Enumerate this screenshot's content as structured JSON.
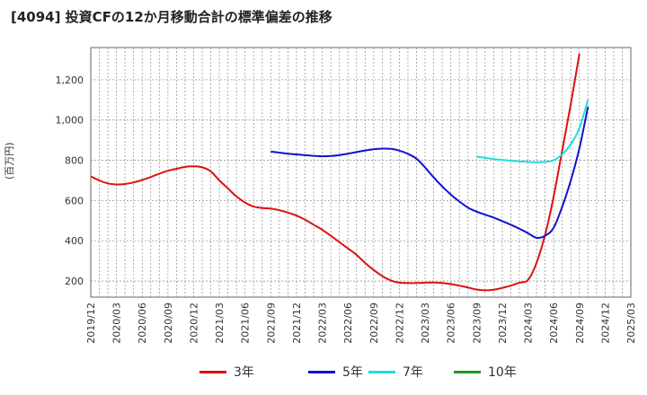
{
  "chart_data": {
    "type": "line",
    "title": "[4094]  投資CFの12か月移動合計の標準偏差の推移",
    "ylabel": "(百万円)",
    "xlabel": "",
    "x_ticks": [
      "2019/12",
      "2020/03",
      "2020/06",
      "2020/09",
      "2020/12",
      "2021/03",
      "2021/06",
      "2021/09",
      "2021/12",
      "2022/03",
      "2022/06",
      "2022/09",
      "2022/12",
      "2023/03",
      "2023/06",
      "2023/09",
      "2023/12",
      "2024/03",
      "2024/06",
      "2024/09",
      "2024/12",
      "2025/03"
    ],
    "y_ticks": [
      200,
      400,
      600,
      800,
      1000,
      1200
    ],
    "y_tick_labels": [
      "200",
      "400",
      "600",
      "800",
      "1,000",
      "1,200"
    ],
    "ylim": [
      120,
      1360
    ],
    "grid": true,
    "legend_position": "bottom",
    "series": [
      {
        "name": "3年",
        "color": "#dd1111",
        "points": [
          [
            "2019/12",
            720
          ],
          [
            "2020/01",
            700
          ],
          [
            "2020/02",
            685
          ],
          [
            "2020/03",
            680
          ],
          [
            "2020/04",
            682
          ],
          [
            "2020/05",
            690
          ],
          [
            "2020/06",
            702
          ],
          [
            "2020/07",
            717
          ],
          [
            "2020/08",
            733
          ],
          [
            "2020/09",
            748
          ],
          [
            "2020/10",
            758
          ],
          [
            "2020/11",
            767
          ],
          [
            "2020/12",
            770
          ],
          [
            "2021/01",
            765
          ],
          [
            "2021/02",
            745
          ],
          [
            "2021/03",
            700
          ],
          [
            "2021/04",
            660
          ],
          [
            "2021/05",
            620
          ],
          [
            "2021/06",
            590
          ],
          [
            "2021/07",
            570
          ],
          [
            "2021/08",
            563
          ],
          [
            "2021/09",
            560
          ],
          [
            "2021/10",
            552
          ],
          [
            "2021/11",
            540
          ],
          [
            "2021/12",
            525
          ],
          [
            "2022/01",
            505
          ],
          [
            "2022/02",
            480
          ],
          [
            "2022/03",
            455
          ],
          [
            "2022/04",
            425
          ],
          [
            "2022/05",
            393
          ],
          [
            "2022/06",
            362
          ],
          [
            "2022/07",
            330
          ],
          [
            "2022/08",
            290
          ],
          [
            "2022/09",
            255
          ],
          [
            "2022/10",
            225
          ],
          [
            "2022/11",
            203
          ],
          [
            "2022/12",
            192
          ],
          [
            "2023/01",
            190
          ],
          [
            "2023/02",
            190
          ],
          [
            "2023/03",
            192
          ],
          [
            "2023/04",
            193
          ],
          [
            "2023/05",
            190
          ],
          [
            "2023/06",
            185
          ],
          [
            "2023/07",
            177
          ],
          [
            "2023/08",
            168
          ],
          [
            "2023/09",
            158
          ],
          [
            "2023/10",
            154
          ],
          [
            "2023/11",
            157
          ],
          [
            "2023/12",
            166
          ],
          [
            "2024/01",
            177
          ],
          [
            "2024/02",
            192
          ],
          [
            "2024/03",
            205
          ],
          [
            "2024/04",
            290
          ],
          [
            "2024/05",
            430
          ],
          [
            "2024/06",
            620
          ],
          [
            "2024/07",
            850
          ],
          [
            "2024/08",
            1080
          ],
          [
            "2024/09",
            1330
          ]
        ]
      },
      {
        "name": "5年",
        "color": "#1111cc",
        "points": [
          [
            "2021/09",
            843
          ],
          [
            "2021/10",
            838
          ],
          [
            "2021/11",
            833
          ],
          [
            "2021/12",
            829
          ],
          [
            "2022/01",
            825
          ],
          [
            "2022/02",
            822
          ],
          [
            "2022/03",
            820
          ],
          [
            "2022/04",
            821
          ],
          [
            "2022/05",
            826
          ],
          [
            "2022/06",
            833
          ],
          [
            "2022/07",
            841
          ],
          [
            "2022/08",
            849
          ],
          [
            "2022/09",
            855
          ],
          [
            "2022/10",
            858
          ],
          [
            "2022/11",
            857
          ],
          [
            "2022/12",
            848
          ],
          [
            "2023/01",
            832
          ],
          [
            "2023/02",
            808
          ],
          [
            "2023/03",
            765
          ],
          [
            "2023/04",
            715
          ],
          [
            "2023/05",
            670
          ],
          [
            "2023/06",
            630
          ],
          [
            "2023/07",
            595
          ],
          [
            "2023/08",
            565
          ],
          [
            "2023/09",
            545
          ],
          [
            "2023/10",
            530
          ],
          [
            "2023/11",
            515
          ],
          [
            "2023/12",
            498
          ],
          [
            "2024/01",
            480
          ],
          [
            "2024/02",
            460
          ],
          [
            "2024/03",
            438
          ],
          [
            "2024/04",
            415
          ],
          [
            "2024/05",
            425
          ],
          [
            "2024/06",
            465
          ],
          [
            "2024/07",
            570
          ],
          [
            "2024/08",
            700
          ],
          [
            "2024/09",
            860
          ],
          [
            "2024/10",
            1065
          ]
        ]
      },
      {
        "name": "7年",
        "color": "#22dddd",
        "points": [
          [
            "2023/09",
            818
          ],
          [
            "2023/10",
            812
          ],
          [
            "2023/11",
            806
          ],
          [
            "2023/12",
            802
          ],
          [
            "2024/01",
            798
          ],
          [
            "2024/02",
            795
          ],
          [
            "2024/03",
            792
          ],
          [
            "2024/04",
            790
          ],
          [
            "2024/05",
            792
          ],
          [
            "2024/06",
            800
          ],
          [
            "2024/07",
            830
          ],
          [
            "2024/08",
            880
          ],
          [
            "2024/09",
            960
          ],
          [
            "2024/10",
            1100
          ]
        ]
      },
      {
        "name": "10年",
        "color": "#229922",
        "points": []
      }
    ]
  }
}
